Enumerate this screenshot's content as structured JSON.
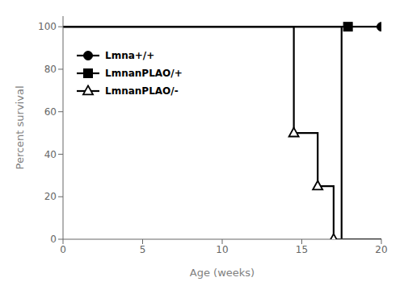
{
  "chart_data": {
    "type": "line",
    "title": "",
    "xlabel": "Age (weeks)",
    "ylabel": "Percent survival",
    "xlim": [
      0,
      20
    ],
    "ylim": [
      0,
      105
    ],
    "xticks": [
      0,
      5,
      10,
      15,
      20
    ],
    "yticks": [
      0,
      20,
      40,
      60,
      80,
      100
    ],
    "grid": false,
    "legend": "upper left",
    "series": [
      {
        "name": "Lmna+/+",
        "color": "#000000",
        "marker": "circle",
        "x": [
          0,
          20
        ],
        "values": [
          100,
          100
        ],
        "marker_x": [
          20
        ],
        "marker_values": [
          100
        ]
      },
      {
        "name": "LmnanPLAO/+",
        "color": "#000000",
        "marker": "square",
        "x": [
          0,
          17.5,
          17.5,
          20
        ],
        "values": [
          100,
          100,
          0,
          0
        ],
        "marker_x": [
          17.9
        ],
        "marker_values": [
          100
        ]
      },
      {
        "name": "LmnanPLAO/-",
        "color": "#000000",
        "marker": "open-triangle",
        "x": [
          0,
          14.5,
          14.5,
          16.0,
          16.0,
          17.0,
          17.0,
          20
        ],
        "values": [
          100,
          100,
          50,
          50,
          25,
          25,
          0,
          0
        ],
        "marker_x": [
          14.5,
          16.0,
          17.0
        ],
        "marker_values": [
          50,
          25,
          0
        ]
      }
    ]
  }
}
